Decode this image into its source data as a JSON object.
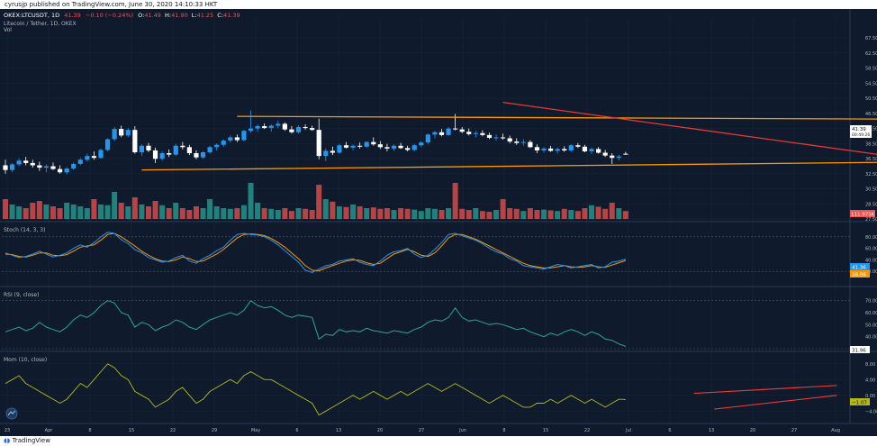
{
  "header": {
    "published_line": "cyrusjp published on TradingView.com, June 30, 2020 14:10:33 HKT",
    "symbol": "OKEX:LTCUSDT, 1D",
    "last": "41.39",
    "change": "−0.10 (−0.24%)",
    "o_label": "O:",
    "o_val": "41.49",
    "h_label": "H:",
    "h_val": "41.90",
    "l_label": "L:",
    "l_val": "41.25",
    "c_label": "C:",
    "c_val": "41.39"
  },
  "legend": {
    "pair_title": "Litecoin / Tether, 1D, OKEX",
    "vol_label": "Vol",
    "stoch_label": "Stoch (14, 3, 3)",
    "rsi_label": "RSI (9, close)",
    "mom_label": "Mom (10, close)"
  },
  "badges": {
    "price": "41.39",
    "price_sub": "00:49:26",
    "volume": "111.975K",
    "stoch_k": "41.36",
    "stoch_d": "38.96",
    "rsi": "31.96",
    "mom": "−1.07"
  },
  "footer": {
    "brand": "TradingView"
  },
  "colors": {
    "up": "#2196f3",
    "down": "#ffffff",
    "vol_up": "#26a69a",
    "vol_down": "#ef5350",
    "trend_orange": "#ff9800",
    "trend_red": "#e53935",
    "stoch_k": "#2196f3",
    "stoch_d": "#ff9800",
    "rsi": "#26a69a",
    "mom": "#b4b813"
  },
  "chart_data": {
    "type": "candlestick",
    "x_ticks": [
      "23",
      "Apr",
      "8",
      "15",
      "22",
      "29",
      "May",
      "6",
      "13",
      "20",
      "27",
      "Jun",
      "8",
      "15",
      "22",
      "Jul",
      "6",
      "13",
      "20",
      "27",
      "Aug"
    ],
    "price_axis": [
      "67.50",
      "62.50",
      "58.50",
      "54.50",
      "50.50",
      "46.50",
      "42.50",
      "38.50",
      "36.50",
      "32.50",
      "30.50",
      "28.50",
      "27.50"
    ],
    "stoch_axis": [
      "80.00",
      "60.00",
      "40.00",
      "20.00"
    ],
    "rsi_axis": [
      "70.00",
      "60.00",
      "50.00",
      "40.00"
    ],
    "mom_axis": [
      "8.00",
      "4.00",
      "0.00",
      "−4.00"
    ],
    "price_range": [
      27.5,
      67.5
    ],
    "candles_ohlc": [
      [
        39.0,
        40.2,
        37.2,
        38.0
      ],
      [
        38.0,
        39.5,
        37.5,
        39.2
      ],
      [
        39.2,
        40.5,
        38.8,
        40.0
      ],
      [
        40.0,
        40.8,
        39.0,
        39.5
      ],
      [
        39.5,
        40.2,
        38.5,
        39.0
      ],
      [
        39.0,
        39.8,
        37.8,
        38.5
      ],
      [
        38.5,
        39.2,
        37.5,
        38.8
      ],
      [
        38.8,
        39.6,
        38.0,
        38.2
      ],
      [
        38.2,
        39.0,
        37.2,
        37.5
      ],
      [
        37.5,
        38.6,
        37.0,
        38.3
      ],
      [
        38.3,
        39.6,
        38.0,
        39.3
      ],
      [
        39.3,
        40.6,
        39.0,
        40.2
      ],
      [
        40.2,
        41.5,
        39.8,
        41.0
      ],
      [
        41.0,
        42.0,
        40.2,
        40.6
      ],
      [
        40.6,
        42.6,
        40.4,
        42.3
      ],
      [
        42.3,
        44.8,
        42.0,
        44.6
      ],
      [
        44.6,
        47.2,
        44.2,
        46.8
      ],
      [
        46.8,
        47.5,
        45.0,
        45.4
      ],
      [
        45.4,
        47.0,
        45.0,
        46.6
      ],
      [
        46.6,
        47.4,
        41.5,
        41.8
      ],
      [
        41.8,
        43.5,
        41.0,
        43.2
      ],
      [
        43.2,
        43.8,
        41.8,
        42.2
      ],
      [
        42.2,
        42.8,
        39.5,
        40.4
      ],
      [
        40.4,
        42.0,
        40.0,
        41.6
      ],
      [
        41.6,
        42.4,
        40.8,
        41.3
      ],
      [
        41.3,
        43.6,
        41.0,
        43.2
      ],
      [
        43.2,
        44.0,
        42.4,
        42.9
      ],
      [
        42.9,
        43.4,
        41.2,
        41.6
      ],
      [
        41.6,
        42.2,
        40.3,
        40.7
      ],
      [
        40.7,
        42.0,
        40.4,
        41.8
      ],
      [
        41.8,
        43.2,
        41.5,
        42.9
      ],
      [
        42.9,
        43.7,
        42.2,
        43.4
      ],
      [
        43.4,
        44.6,
        43.0,
        44.3
      ],
      [
        44.3,
        45.4,
        43.9,
        45.0
      ],
      [
        45.0,
        45.6,
        44.0,
        44.4
      ],
      [
        44.4,
        46.6,
        44.2,
        46.4
      ],
      [
        46.4,
        50.8,
        46.0,
        46.9
      ],
      [
        46.9,
        47.8,
        46.2,
        47.4
      ],
      [
        47.4,
        48.0,
        46.8,
        47.0
      ],
      [
        47.0,
        47.8,
        46.2,
        47.5
      ],
      [
        47.5,
        48.6,
        47.0,
        47.9
      ],
      [
        47.9,
        48.2,
        46.4,
        46.7
      ],
      [
        46.7,
        47.4,
        45.8,
        46.1
      ],
      [
        46.1,
        47.6,
        45.8,
        47.2
      ],
      [
        47.2,
        47.8,
        46.6,
        47.0
      ],
      [
        47.0,
        47.5,
        46.4,
        46.6
      ],
      [
        46.6,
        49.0,
        40.3,
        41.0
      ],
      [
        41.0,
        42.6,
        39.9,
        42.1
      ],
      [
        42.1,
        43.0,
        41.2,
        41.7
      ],
      [
        41.7,
        43.6,
        41.5,
        43.3
      ],
      [
        43.3,
        44.0,
        42.6,
        42.8
      ],
      [
        42.8,
        43.5,
        42.2,
        43.2
      ],
      [
        43.2,
        43.9,
        42.6,
        43.0
      ],
      [
        43.0,
        44.2,
        42.8,
        44.0
      ],
      [
        44.0,
        45.0,
        43.2,
        43.5
      ],
      [
        43.5,
        44.2,
        42.5,
        42.9
      ],
      [
        42.9,
        43.6,
        42.0,
        42.6
      ],
      [
        42.6,
        43.5,
        42.1,
        43.2
      ],
      [
        43.2,
        43.8,
        42.5,
        42.7
      ],
      [
        42.7,
        43.2,
        42.0,
        42.3
      ],
      [
        42.3,
        43.6,
        42.0,
        43.3
      ],
      [
        43.3,
        44.2,
        42.9,
        43.9
      ],
      [
        43.9,
        45.8,
        43.5,
        45.6
      ],
      [
        45.6,
        46.4,
        44.8,
        46.1
      ],
      [
        46.1,
        46.8,
        45.2,
        45.5
      ],
      [
        45.5,
        47.2,
        45.3,
        46.9
      ],
      [
        46.9,
        50.0,
        46.5,
        46.7
      ],
      [
        46.7,
        47.2,
        45.9,
        46.2
      ],
      [
        46.2,
        46.9,
        45.4,
        45.7
      ],
      [
        45.7,
        46.4,
        45.0,
        45.9
      ],
      [
        45.9,
        46.5,
        45.2,
        45.5
      ],
      [
        45.5,
        46.0,
        44.6,
        44.9
      ],
      [
        44.9,
        45.6,
        44.3,
        45.0
      ],
      [
        45.0,
        45.8,
        44.5,
        44.8
      ],
      [
        44.8,
        45.4,
        43.7,
        44.1
      ],
      [
        44.1,
        44.8,
        43.4,
        43.8
      ],
      [
        43.8,
        44.6,
        43.2,
        44.0
      ],
      [
        44.0,
        44.4,
        42.7,
        42.9
      ],
      [
        42.9,
        43.5,
        41.6,
        42.2
      ],
      [
        42.2,
        42.9,
        41.7,
        42.6
      ],
      [
        42.6,
        43.2,
        41.9,
        42.1
      ],
      [
        42.1,
        42.8,
        41.5,
        42.5
      ],
      [
        42.5,
        43.1,
        41.9,
        42.2
      ],
      [
        42.2,
        43.5,
        41.9,
        43.3
      ],
      [
        43.3,
        43.8,
        42.7,
        43.0
      ],
      [
        43.0,
        43.4,
        41.8,
        42.0
      ],
      [
        42.0,
        42.8,
        41.4,
        42.5
      ],
      [
        42.5,
        42.9,
        41.5,
        41.7
      ],
      [
        41.7,
        42.3,
        40.8,
        41.1
      ],
      [
        41.1,
        41.6,
        39.3,
        40.6
      ],
      [
        40.6,
        41.3,
        40.0,
        40.9
      ],
      [
        41.49,
        41.9,
        41.25,
        41.39
      ]
    ],
    "volume_relative": [
      0.55,
      0.4,
      0.35,
      0.3,
      0.45,
      0.5,
      0.4,
      0.35,
      0.3,
      0.45,
      0.4,
      0.35,
      0.3,
      0.55,
      0.4,
      0.38,
      0.75,
      0.45,
      0.35,
      0.6,
      0.4,
      0.35,
      0.5,
      0.38,
      0.3,
      0.45,
      0.3,
      0.25,
      0.35,
      0.3,
      0.55,
      0.35,
      0.3,
      0.28,
      0.3,
      0.38,
      1.0,
      0.45,
      0.3,
      0.28,
      0.25,
      0.3,
      0.22,
      0.3,
      0.28,
      0.25,
      0.95,
      0.55,
      0.48,
      0.35,
      0.33,
      0.4,
      0.35,
      0.3,
      0.32,
      0.28,
      0.3,
      0.25,
      0.3,
      0.28,
      0.26,
      0.22,
      0.3,
      0.28,
      0.25,
      0.3,
      1.0,
      0.28,
      0.25,
      0.3,
      0.22,
      0.2,
      0.25,
      0.55,
      0.3,
      0.28,
      0.22,
      0.3,
      0.25,
      0.26,
      0.24,
      0.22,
      0.28,
      0.25,
      0.22,
      0.3,
      0.38,
      0.34,
      0.28,
      0.45,
      0.3,
      0.22
    ],
    "stoch_k": [
      52,
      48,
      44,
      46,
      50,
      55,
      50,
      45,
      48,
      52,
      60,
      66,
      62,
      70,
      80,
      88,
      86,
      75,
      68,
      58,
      52,
      44,
      40,
      36,
      38,
      44,
      48,
      38,
      34,
      42,
      48,
      56,
      62,
      74,
      84,
      86,
      84,
      83,
      80,
      74,
      66,
      56,
      46,
      36,
      22,
      18,
      24,
      30,
      32,
      38,
      40,
      42,
      36,
      32,
      30,
      38,
      48,
      54,
      56,
      60,
      50,
      44,
      48,
      58,
      70,
      84,
      86,
      82,
      78,
      74,
      68,
      60,
      54,
      50,
      42,
      38,
      30,
      28,
      26,
      24,
      28,
      32,
      30,
      26,
      28,
      30,
      32,
      26,
      28,
      36,
      38,
      41.36
    ],
    "stoch_d": [
      50,
      49,
      46,
      45,
      48,
      52,
      52,
      48,
      47,
      49,
      55,
      62,
      64,
      66,
      74,
      84,
      86,
      80,
      72,
      64,
      55,
      48,
      42,
      38,
      37,
      40,
      45,
      42,
      37,
      38,
      44,
      50,
      58,
      68,
      78,
      84,
      85,
      84,
      82,
      77,
      70,
      62,
      52,
      42,
      30,
      22,
      21,
      26,
      30,
      34,
      38,
      40,
      39,
      35,
      32,
      34,
      42,
      50,
      54,
      58,
      54,
      48,
      46,
      52,
      64,
      78,
      84,
      84,
      80,
      76,
      70,
      64,
      58,
      52,
      46,
      40,
      34,
      30,
      28,
      26,
      26,
      28,
      30,
      28,
      27,
      28,
      30,
      28,
      27,
      31,
      35,
      38.96
    ],
    "rsi": [
      44,
      46,
      48,
      45,
      47,
      52,
      48,
      46,
      44,
      48,
      54,
      58,
      56,
      60,
      66,
      70,
      68,
      60,
      58,
      48,
      52,
      50,
      45,
      48,
      50,
      54,
      52,
      48,
      46,
      50,
      54,
      56,
      58,
      60,
      58,
      62,
      70,
      66,
      64,
      65,
      62,
      58,
      56,
      58,
      57,
      56,
      38,
      42,
      41,
      46,
      44,
      45,
      44,
      47,
      45,
      44,
      43,
      45,
      44,
      43,
      46,
      48,
      52,
      54,
      53,
      56,
      64,
      56,
      53,
      54,
      52,
      50,
      51,
      50,
      48,
      46,
      47,
      44,
      42,
      40,
      43,
      41,
      44,
      46,
      44,
      41,
      44,
      42,
      38,
      37,
      34,
      31.96
    ],
    "mom": [
      3,
      4,
      5,
      3,
      2,
      1,
      0,
      -1,
      -2,
      -1,
      1,
      3,
      2,
      4,
      6,
      8,
      7,
      5,
      4,
      1,
      0,
      -1,
      -3,
      -2,
      -1,
      1,
      2,
      0,
      -2,
      -1,
      1,
      2,
      3,
      4,
      3,
      5,
      6,
      5,
      4,
      4,
      3,
      2,
      1,
      0,
      -1,
      -2,
      -5,
      -4,
      -3,
      -2,
      -1,
      0,
      -1,
      0,
      1,
      0,
      -1,
      0,
      1,
      0,
      1,
      2,
      3,
      2,
      1,
      2,
      3,
      2,
      1,
      0,
      -1,
      -2,
      -1,
      0,
      -1,
      -2,
      -3,
      -3,
      -2,
      -2,
      -1,
      -2,
      -1,
      0,
      -1,
      -2,
      -1,
      -2,
      -3,
      -2,
      -1,
      -1.07
    ],
    "trendlines": [
      {
        "name": "upper-orange",
        "color": "#ff9800",
        "from": [
          34,
          49.5
        ],
        "to": [
          133,
          48.9
        ]
      },
      {
        "name": "lower-orange",
        "color": "#ff9800",
        "from": [
          20,
          38.0
        ],
        "to": [
          133,
          39.7
        ]
      },
      {
        "name": "red-down",
        "color": "#e53935",
        "from": [
          73,
          52.5
        ],
        "to": [
          141,
          38.7
        ]
      }
    ],
    "mom_trendlines": [
      {
        "name": "mom-upper",
        "from": [
          101,
          0.5
        ],
        "to": [
          122,
          2.5
        ]
      },
      {
        "name": "mom-lower",
        "from": [
          104,
          -3.5
        ],
        "to": [
          122,
          0.0
        ]
      }
    ]
  }
}
